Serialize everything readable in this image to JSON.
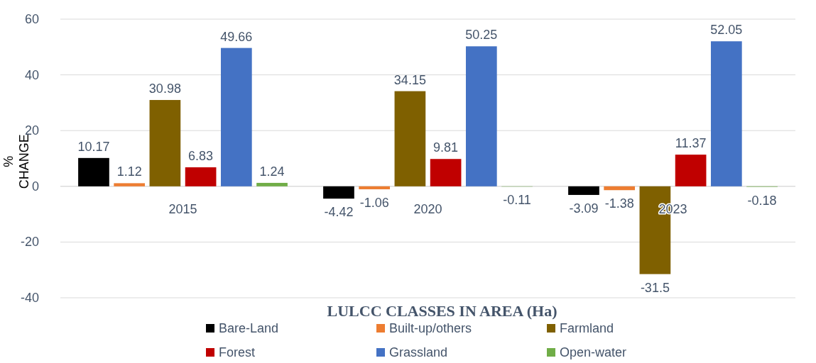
{
  "chart_data": {
    "type": "bar",
    "xlabel": "LULCC CLASSES IN AREA (Ha)",
    "ylabel": "% CHANGE",
    "categories": [
      "2015",
      "2020",
      "2023"
    ],
    "series": [
      {
        "name": "Bare-Land",
        "color": "#000000",
        "values": [
          10.17,
          -4.42,
          -3.09
        ]
      },
      {
        "name": "Built-up/others",
        "color": "#ed7d31",
        "values": [
          1.12,
          -1.06,
          -1.38
        ]
      },
      {
        "name": "Farmland",
        "color": "#7f6000",
        "values": [
          30.98,
          34.15,
          -31.5
        ]
      },
      {
        "name": "Forest",
        "color": "#c00000",
        "values": [
          6.83,
          9.81,
          11.37
        ]
      },
      {
        "name": "Grassland",
        "color": "#4472c4",
        "values": [
          49.66,
          50.25,
          52.05
        ]
      },
      {
        "name": "Open-water",
        "color": "#70ad47",
        "values": [
          1.24,
          -0.11,
          -0.18
        ]
      }
    ],
    "ylim": [
      -40,
      60
    ],
    "yticks": [
      -40,
      -20,
      0,
      20,
      40,
      60
    ],
    "grid": "y",
    "legend": "bottom",
    "data_labels": true
  }
}
